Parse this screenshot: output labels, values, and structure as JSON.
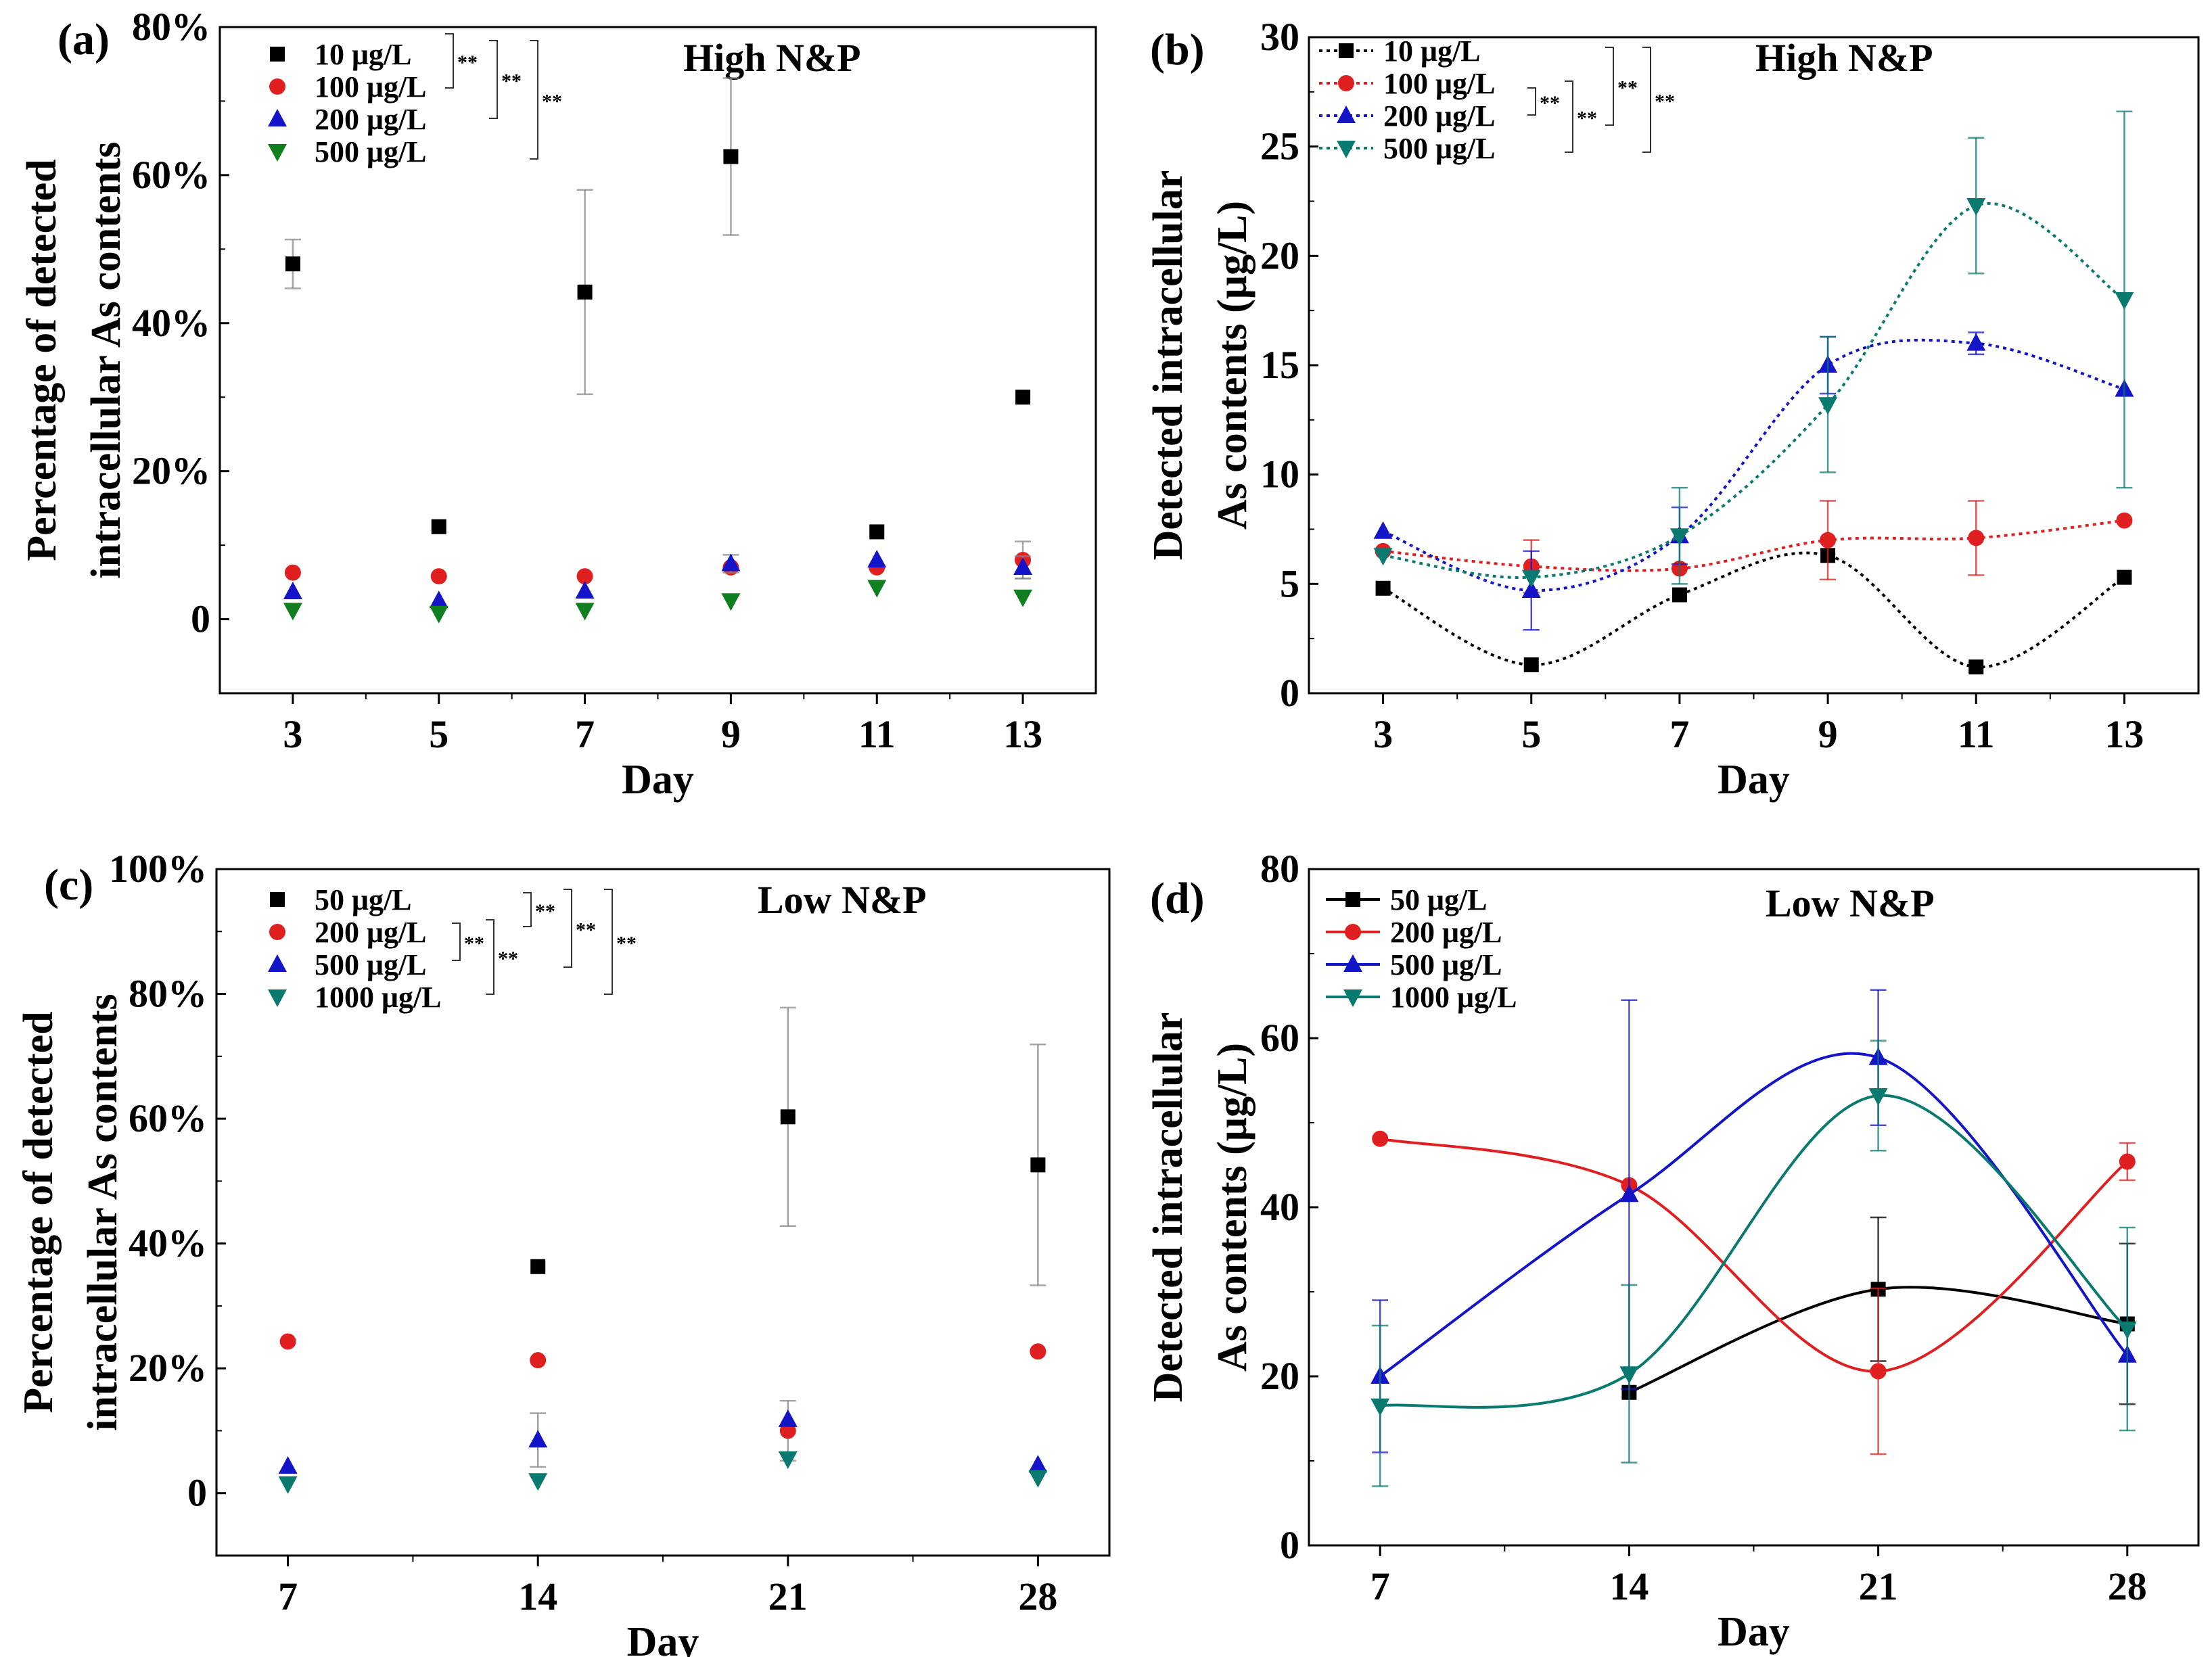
{
  "colors": {
    "s1": "#000000",
    "s2": "#e02020",
    "s3": "#1414c8",
    "s4": "#0a7a70",
    "s4_scatter": "#0f7f1f",
    "err": "#888888"
  },
  "chart_data": [
    {
      "type": "scatter",
      "panel": "(a)",
      "condition": "High N&P",
      "xlabel": "Day",
      "ylabel_lines": [
        "Percentage of detected",
        "intracellular As contents"
      ],
      "xlim": [
        2,
        14
      ],
      "ylim": [
        -10,
        80
      ],
      "x_ticks": [
        3,
        5,
        7,
        9,
        11,
        13
      ],
      "y_ticks": [
        0,
        20,
        40,
        60,
        80
      ],
      "y_tick_labels": [
        "0",
        "20%",
        "40%",
        "60%",
        "80%"
      ],
      "significance": "**",
      "x": [
        3,
        5,
        7,
        9,
        11,
        13
      ],
      "series": [
        {
          "name": "10   μg/L",
          "marker": "square",
          "values": [
            48,
            12.5,
            44.2,
            62.5,
            11.8,
            30
          ],
          "errors": [
            3.3,
            0,
            13.8,
            10.6,
            0,
            0
          ]
        },
        {
          "name": "100  μg/L",
          "marker": "circle",
          "values": [
            6.3,
            5.8,
            5.8,
            7,
            7,
            8
          ],
          "errors": [
            0,
            0,
            0,
            0,
            0,
            2.5
          ]
        },
        {
          "name": "200  μg/L",
          "marker": "triangle-up",
          "values": [
            3.7,
            2.5,
            3.8,
            7.5,
            8,
            7
          ],
          "errors": [
            0,
            0,
            0,
            1.2,
            0,
            1.5
          ]
        },
        {
          "name": "500  μg/L",
          "marker": "triangle-down",
          "values": [
            1.2,
            0.8,
            1.2,
            2.5,
            4.3,
            3
          ],
          "errors": [
            0,
            0,
            0,
            0,
            0,
            0
          ]
        }
      ]
    },
    {
      "type": "line",
      "panel": "(b)",
      "condition": "High N&P",
      "xlabel": "Day",
      "ylabel_lines": [
        "Detected intracellular",
        "As contents (μg/L)"
      ],
      "xlim": [
        2,
        14
      ],
      "ylim": [
        0,
        30
      ],
      "x_ticks": [
        3,
        5,
        7,
        9,
        11,
        13
      ],
      "y_ticks": [
        0,
        5,
        10,
        15,
        20,
        25,
        30
      ],
      "y_tick_labels": [
        "0",
        "5",
        "10",
        "15",
        "20",
        "25",
        "30"
      ],
      "significance": "**",
      "x": [
        3,
        5,
        7,
        9,
        11,
        13
      ],
      "series": [
        {
          "name": "10   μg/L",
          "marker": "square",
          "values": [
            4.8,
            1.3,
            4.5,
            6.3,
            1.2,
            5.3
          ],
          "errors": [
            0,
            0,
            0,
            0,
            0,
            0
          ]
        },
        {
          "name": "100  μg/L",
          "marker": "circle",
          "values": [
            6.5,
            5.8,
            5.7,
            7,
            7.1,
            7.9
          ],
          "errors": [
            0,
            1.2,
            0,
            1.8,
            1.7,
            0
          ]
        },
        {
          "name": "200  μg/L",
          "marker": "triangle-up",
          "values": [
            7.4,
            4.7,
            7.2,
            15,
            16,
            13.9
          ],
          "errors": [
            0,
            1.8,
            1.3,
            1.3,
            0.5,
            0
          ]
        },
        {
          "name": "500  μg/L",
          "marker": "triangle-down",
          "values": [
            6.3,
            5.3,
            7.2,
            13.2,
            22.3,
            18
          ],
          "errors": [
            0,
            0,
            2.2,
            3.1,
            3.1,
            8.6
          ]
        }
      ]
    },
    {
      "type": "scatter",
      "panel": "(c)",
      "condition": "Low N&P",
      "xlabel": "Day",
      "ylabel_lines": [
        "Percentage of detected",
        "intracellular As contents"
      ],
      "xlim": [
        5,
        30
      ],
      "ylim": [
        -10,
        100
      ],
      "x_ticks": [
        7,
        14,
        21,
        28
      ],
      "y_ticks": [
        0,
        20,
        40,
        60,
        80,
        100
      ],
      "y_tick_labels": [
        "0",
        "20%",
        "40%",
        "60%",
        "80%",
        "100%"
      ],
      "significance": "**",
      "x": [
        7,
        14,
        21,
        28
      ],
      "series": [
        {
          "name": "50     μg/L",
          "marker": "square",
          "values": [
            null,
            36.3,
            60.3,
            52.6
          ],
          "errors": [
            0,
            0,
            17.5,
            19.3
          ]
        },
        {
          "name": "200   μg/L",
          "marker": "circle",
          "values": [
            24.3,
            21.3,
            10,
            22.7
          ],
          "errors": [
            0,
            0,
            4.8,
            0
          ]
        },
        {
          "name": "500   μg/L",
          "marker": "triangle-up",
          "values": [
            4.3,
            8.5,
            11.8,
            4.5
          ],
          "errors": [
            0,
            4.3,
            0,
            0
          ]
        },
        {
          "name": "1000 μg/L",
          "marker": "triangle-down",
          "values": [
            1.5,
            2,
            5.5,
            2.5
          ],
          "errors": [
            0,
            0,
            0,
            0
          ]
        }
      ]
    },
    {
      "type": "line",
      "panel": "(d)",
      "condition": "Low N&P",
      "xlabel": "Day",
      "ylabel_lines": [
        "Detected intracellular",
        "As contents (μg/L)"
      ],
      "xlim": [
        5,
        30
      ],
      "ylim": [
        0,
        80
      ],
      "x_ticks": [
        7,
        14,
        21,
        28
      ],
      "y_ticks": [
        0,
        20,
        40,
        60,
        80
      ],
      "y_tick_labels": [
        "0",
        "20",
        "40",
        "60",
        "80"
      ],
      "x": [
        7,
        14,
        21,
        28
      ],
      "series": [
        {
          "name": "50     μg/L",
          "marker": "square",
          "values": [
            null,
            18.1,
            30.3,
            26.2
          ],
          "errors": [
            0,
            0,
            8.5,
            9.5
          ]
        },
        {
          "name": "200   μg/L",
          "marker": "circle",
          "values": [
            48.1,
            42.6,
            20.6,
            45.4
          ],
          "errors": [
            0,
            0,
            9.8,
            2.2
          ]
        },
        {
          "name": "500   μg/L",
          "marker": "triangle-up",
          "values": [
            20,
            41.5,
            57.7,
            22.5
          ],
          "errors": [
            9,
            23,
            8,
            0
          ]
        },
        {
          "name": "1000 μg/L",
          "marker": "triangle-down",
          "values": [
            16.5,
            20.3,
            53.2,
            25.6
          ],
          "errors": [
            9.5,
            10.5,
            6.5,
            12
          ]
        }
      ]
    }
  ]
}
